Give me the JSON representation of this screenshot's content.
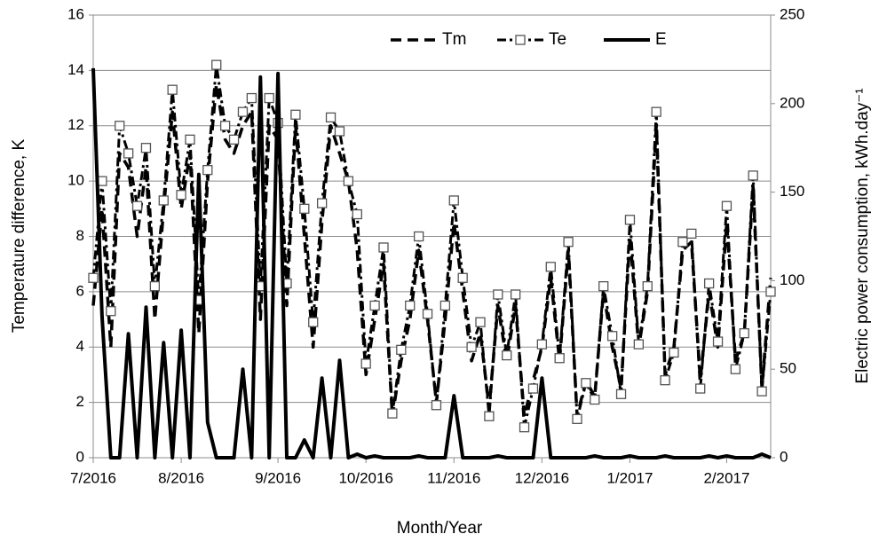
{
  "chart_data": {
    "type": "line",
    "x_label": "Month/Year",
    "y_label": "Temperature difference, K",
    "y2_label": "Electric power consumption, kWh.day⁻¹",
    "categories": [
      "7/2016",
      null,
      null,
      null,
      null,
      null,
      null,
      null,
      null,
      null,
      "8/2016",
      null,
      null,
      null,
      null,
      null,
      null,
      null,
      null,
      null,
      null,
      "9/2016",
      null,
      null,
      null,
      null,
      null,
      null,
      null,
      null,
      null,
      "10/2016",
      null,
      null,
      null,
      null,
      null,
      null,
      null,
      null,
      null,
      "11/2016",
      null,
      null,
      null,
      null,
      null,
      null,
      null,
      null,
      null,
      "12/2016",
      null,
      null,
      null,
      null,
      null,
      null,
      null,
      null,
      null,
      "1/2017",
      null,
      null,
      null,
      null,
      null,
      null,
      null,
      null,
      null,
      null,
      "2/2017",
      null,
      null,
      null,
      null,
      null
    ],
    "ylim": [
      0,
      16
    ],
    "yticks": [
      0,
      2,
      4,
      6,
      8,
      10,
      12,
      14,
      16
    ],
    "y2lim": [
      0,
      250
    ],
    "y2ticks": [
      0,
      50,
      100,
      150,
      200,
      250
    ],
    "grid": true,
    "legend": "top",
    "series": [
      {
        "name": "Tm",
        "color": "#000000",
        "style": "dashed",
        "values": [
          5.5,
          9,
          4,
          11,
          10.5,
          8,
          10.5,
          5,
          9,
          12.5,
          9,
          11,
          4.5,
          10,
          13.5,
          11.5,
          11,
          12,
          12.5,
          5,
          12,
          11.5,
          5.5,
          12,
          8,
          4,
          8.5,
          12,
          11,
          10,
          7.5,
          3,
          5,
          7,
          1.5,
          3.5,
          5,
          7.5,
          5,
          2,
          5,
          8.5,
          6,
          3.5,
          4.5,
          1.8,
          5.5,
          3.5,
          5.5,
          1.5,
          2.8,
          4,
          6.5,
          3.5,
          7.5,
          1.5,
          2.8,
          2.2,
          6,
          4,
          2.5,
          8,
          4,
          6,
          12,
          3,
          4,
          7.5,
          7.8,
          2.8,
          6,
          4,
          8.5,
          3.5,
          4.5,
          9.8,
          2.5,
          6.5
        ]
      },
      {
        "name": "Te",
        "color": "#000000",
        "style": "dash-dot",
        "marker": "square",
        "values": [
          6.5,
          10,
          5.3,
          12,
          11,
          9.1,
          11.2,
          6.2,
          9.3,
          13.3,
          9.5,
          11.5,
          5.7,
          10.4,
          14.2,
          12,
          11.5,
          12.5,
          13,
          6.2,
          13,
          12.1,
          6.3,
          12.4,
          9,
          4.9,
          9.2,
          12.3,
          11.8,
          10,
          8.8,
          3.4,
          5.5,
          7.6,
          1.6,
          3.9,
          5.5,
          8,
          5.2,
          1.9,
          5.5,
          9.3,
          6.5,
          4,
          4.9,
          1.5,
          5.9,
          3.7,
          5.9,
          1.1,
          2.5,
          4.1,
          6.9,
          3.6,
          7.8,
          1.4,
          2.7,
          2.1,
          6.2,
          4.4,
          2.3,
          8.6,
          4.1,
          6.2,
          12.5,
          2.8,
          3.8,
          7.8,
          8.1,
          2.5,
          6.3,
          4.2,
          9.1,
          3.2,
          4.5,
          10.2,
          2.4,
          6
        ]
      },
      {
        "name": "E",
        "color": "#000000",
        "style": "solid",
        "axis": "y2",
        "values": [
          220,
          80,
          0,
          0,
          70,
          0,
          85,
          0,
          65,
          0,
          72,
          0,
          160,
          20,
          0,
          0,
          0,
          50,
          0,
          215,
          0,
          217,
          0,
          0,
          10,
          0,
          45,
          0,
          55,
          0,
          2,
          0,
          1,
          0,
          0,
          0,
          0,
          1,
          0,
          0,
          0,
          35,
          0,
          0,
          0,
          0,
          1,
          0,
          0,
          0,
          0,
          45,
          0,
          0,
          0,
          0,
          0,
          1,
          0,
          0,
          0,
          1,
          0,
          0,
          0,
          1,
          0,
          0,
          0,
          0,
          1,
          0,
          1,
          0,
          0,
          0,
          2,
          0
        ]
      }
    ]
  }
}
